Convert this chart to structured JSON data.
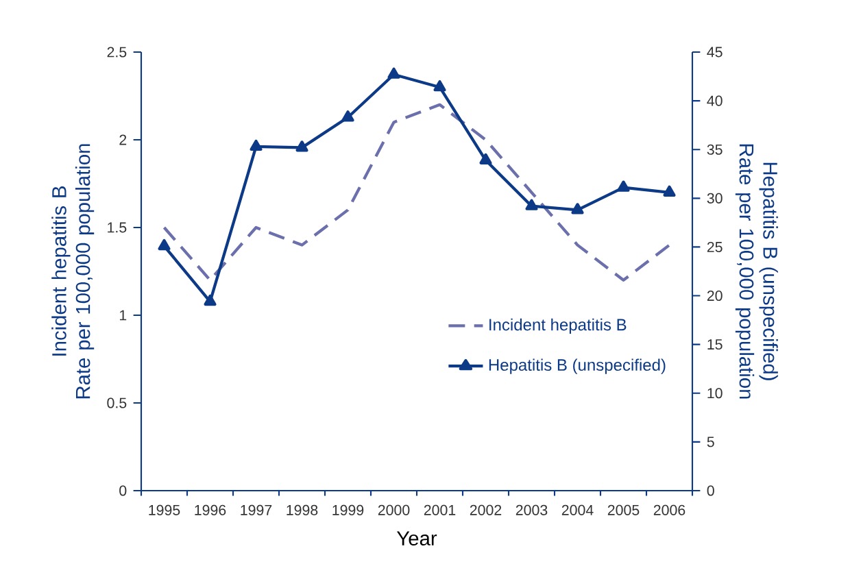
{
  "chart_data": {
    "type": "line",
    "categories": [
      "1995",
      "1996",
      "1997",
      "1998",
      "1999",
      "2000",
      "2001",
      "2002",
      "2003",
      "2004",
      "2005",
      "2006"
    ],
    "xlabel": "Year",
    "ylabel": "Incident hepatitis B\nRate per 100,000 population",
    "y2label": "Hepatitis B (unspecified)\nRate per 100,000 population",
    "ylim": [
      0,
      2.5
    ],
    "yticks": [
      0,
      0.5,
      1,
      1.5,
      2,
      2.5
    ],
    "y2lim": [
      0,
      45
    ],
    "y2ticks": [
      0,
      5,
      10,
      15,
      20,
      25,
      30,
      35,
      40,
      45
    ],
    "legend": "center right",
    "grid": false,
    "series": [
      {
        "name": "Incident hepatitis B",
        "color": "#6b70ad",
        "line_style": "dashed",
        "marker": "none",
        "values": [
          1.5,
          1.2,
          1.5,
          1.4,
          1.6,
          2.1,
          2.2,
          2.0,
          1.7,
          1.4,
          1.2,
          1.4
        ]
      },
      {
        "name": "Hepatitis B (unspecified)",
        "color": "#0d3a86",
        "line_style": "solid",
        "marker": "triangle",
        "axis": "y2",
        "values": [
          25.1,
          19.4,
          35.3,
          35.2,
          38.3,
          42.7,
          41.4,
          33.9,
          29.2,
          28.8,
          31.1,
          30.6
        ]
      }
    ]
  }
}
